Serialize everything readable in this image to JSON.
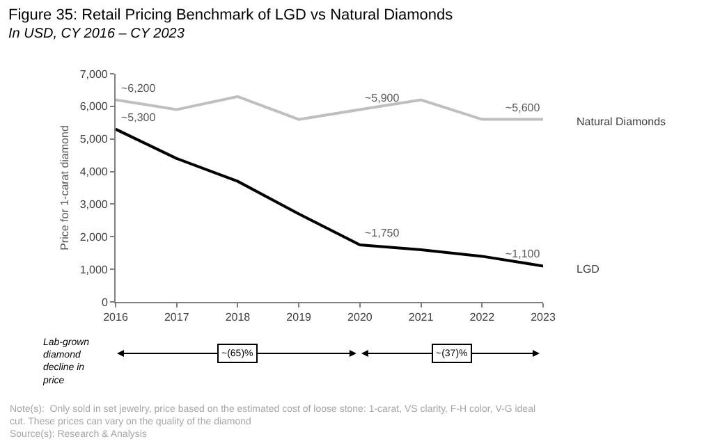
{
  "chart_data": {
    "type": "line",
    "title": "Figure 35: Retail Pricing Benchmark of LGD vs Natural Diamonds",
    "subtitle": "In USD, CY 2016 – CY 2023",
    "ylabel": "Price for 1-carat diamond",
    "x": [
      2016,
      2017,
      2018,
      2019,
      2020,
      2021,
      2022,
      2023
    ],
    "series": [
      {
        "name": "Natural Diamonds",
        "color": "#bfbfbf",
        "values": [
          6200,
          5900,
          6300,
          5600,
          5900,
          6200,
          5600,
          5600
        ]
      },
      {
        "name": "LGD",
        "color": "#000000",
        "values": [
          5300,
          4400,
          3700,
          2700,
          1750,
          1600,
          1400,
          1100
        ]
      }
    ],
    "xlim": [
      2016,
      2023
    ],
    "xticks": [
      2016,
      2017,
      2018,
      2019,
      2020,
      2021,
      2022,
      2023
    ],
    "ylim": [
      0,
      7000
    ],
    "yticks": [
      {
        "value": 0,
        "label": "0"
      },
      {
        "value": 1000,
        "label": "1,000"
      },
      {
        "value": 2000,
        "label": "2,000"
      },
      {
        "value": 3000,
        "label": "3,000"
      },
      {
        "value": 4000,
        "label": "4,000"
      },
      {
        "value": 5000,
        "label": "5,000"
      },
      {
        "value": 6000,
        "label": "6,000"
      },
      {
        "value": 7000,
        "label": "7,000"
      }
    ],
    "grid": false,
    "legend": false,
    "marker": "none",
    "line_style": "solid",
    "annotations": [
      {
        "text": "~6,200",
        "x": 2016,
        "y": 6200
      },
      {
        "text": "~5,300",
        "x": 2016,
        "y": 5300
      },
      {
        "text": "~5,900",
        "x": 2020,
        "y": 5900
      },
      {
        "text": "~5,600",
        "x": 2023,
        "y": 5600
      },
      {
        "text": "~1,750",
        "x": 2020,
        "y": 1750
      },
      {
        "text": "~1,100",
        "x": 2023,
        "y": 1100
      },
      "Lab-grown diamond decline in price",
      "~(65)%",
      "~(37)%",
      "Note(s):  Only sold in set jewelry, price based on the estimated cost of loose stone: 1-carat, VS clarity, F-H color, V-G ideal cut. These prices can vary on the quality of the diamond",
      "Source(s): Research & Analysis"
    ]
  }
}
